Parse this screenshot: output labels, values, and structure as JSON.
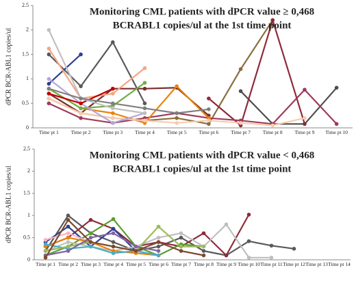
{
  "chart_data": [
    {
      "type": "line",
      "title": [
        "Monitoring CML patients with dPCR value ≥ 0,468",
        "BCRABL1 copies/ul at the 1st time point"
      ],
      "y_label": "dPCR BCR-ABL1 copies/ul",
      "categories": [
        "Time pt 1",
        "Time pt 2",
        "Time pt 3",
        "Time pt 4",
        "Time pt 5",
        "Time pt 6",
        "Time pt 7",
        "Time pt 8",
        "Time pt 9",
        "Time pt 10"
      ],
      "ylim": [
        0,
        2.5
      ],
      "yticks": [
        0,
        0.5,
        1,
        1.5,
        2,
        2.5
      ],
      "grid": false,
      "series": [
        {
          "color": "#595959",
          "values": [
            1.5,
            0.85,
            1.75,
            0.5,
            null,
            null,
            null,
            null,
            null,
            null
          ]
        },
        {
          "color": "#2e3f8f",
          "values": [
            0.9,
            1.5,
            null,
            null,
            null,
            null,
            null,
            null,
            null,
            null
          ]
        },
        {
          "color": "#4d4d4d",
          "values": [
            null,
            null,
            null,
            null,
            null,
            null,
            0.75,
            0.08,
            0.08,
            0.82
          ]
        },
        {
          "color": "#7b2d2d",
          "values": [
            0.7,
            0.3,
            0.8,
            0.8,
            0.82,
            0.25,
            null,
            null,
            null,
            null
          ]
        },
        {
          "color": "#8a6d3b",
          "values": [
            0.6,
            0.3,
            0.2,
            0.15,
            0.2,
            0.08,
            1.2,
            2.2,
            null,
            null
          ]
        },
        {
          "color": "#8e2a3a",
          "values": [
            null,
            null,
            null,
            null,
            null,
            0.6,
            0.05,
            2.2,
            0.08,
            null
          ]
        },
        {
          "color": "#9e3a5a",
          "values": [
            0.5,
            0.2,
            0.1,
            0.2,
            0.3,
            0.2,
            0.15,
            0.08,
            0.78,
            0.08
          ]
        },
        {
          "color": "#e8820c",
          "values": [
            0.8,
            0.4,
            0.3,
            0.1,
            0.85,
            0.2,
            null,
            null,
            null,
            null
          ]
        },
        {
          "color": "#f4a582",
          "values": [
            1.62,
            0.6,
            0.7,
            1.22,
            null,
            null,
            null,
            null,
            null,
            null
          ]
        },
        {
          "color": "#70ad47",
          "values": [
            0.8,
            0.4,
            0.45,
            0.92,
            null,
            null,
            null,
            null,
            null,
            null
          ]
        },
        {
          "color": "#f8cbad",
          "values": [
            0.6,
            0.3,
            0.2,
            0.15,
            0.1,
            0.15,
            0.1,
            0.05,
            0.2,
            null
          ]
        },
        {
          "color": "#b4a7d6",
          "values": [
            1.0,
            0.5,
            0.1,
            0.3,
            null,
            null,
            null,
            null,
            null,
            null
          ]
        },
        {
          "color": "#c00000",
          "values": [
            0.7,
            0.5,
            0.8,
            null,
            null,
            null,
            null,
            null,
            null,
            null
          ]
        },
        {
          "color": "#bfbfbf",
          "values": [
            2.0,
            0.6,
            0.4,
            0.3,
            null,
            null,
            null,
            null,
            null,
            null
          ]
        },
        {
          "color": "#7f7f7f",
          "values": [
            0.8,
            0.6,
            0.5,
            0.4,
            0.3,
            0.38,
            null,
            null,
            null,
            null
          ]
        }
      ]
    },
    {
      "type": "line",
      "title": [
        "Monitoring CML patients with dPCR value < 0,468",
        "BCRABL1 copies/ul at the 1st time point"
      ],
      "y_label": "dPCR BCR-ABL1 copies/ul",
      "categories": [
        "Time pt 1",
        "Time pt 2",
        "Time pt 3",
        "Time pt 4",
        "Time pt 5",
        "Time pt 6",
        "Time pt 7",
        "Time pt 8",
        "Time pt 9",
        "Time pt 10",
        "Time pt 11",
        "Time pt 12",
        "Time pt 13",
        "Time pt 14"
      ],
      "ylim": [
        0,
        2.5
      ],
      "yticks": [
        0,
        0.5,
        1,
        1.5,
        2,
        2.5
      ],
      "grid": false,
      "series": [
        {
          "color": "#595959",
          "values": [
            0.2,
            1.0,
            0.6,
            0.4,
            0.2,
            0.3,
            0.5,
            0.2,
            0.1,
            0.42,
            0.32,
            0.25,
            null,
            null
          ]
        },
        {
          "color": "#8e2a3a",
          "values": [
            0.3,
            0.5,
            0.9,
            0.7,
            0.3,
            0.4,
            0.3,
            0.6,
            0.1,
            1.02,
            null,
            null,
            null,
            null
          ]
        },
        {
          "color": "#5a9e2f",
          "values": [
            0.1,
            0.3,
            0.6,
            0.92,
            0.3,
            0.1,
            0.35,
            0.3,
            null,
            null,
            null,
            null,
            null,
            null
          ]
        },
        {
          "color": "#2e3f8f",
          "values": [
            0.4,
            0.75,
            0.3,
            0.7,
            0.2,
            null,
            null,
            null,
            null,
            null,
            null,
            null,
            null,
            null
          ]
        },
        {
          "color": "#bfbfbf",
          "values": [
            0.2,
            0.4,
            0.3,
            0.2,
            0.3,
            0.5,
            0.6,
            0.3,
            0.8,
            0.05,
            0.05,
            null,
            null,
            null
          ]
        },
        {
          "color": "#f4b6c2",
          "values": [
            0.45,
            0.6,
            0.4,
            0.3,
            0.2,
            0.1,
            null,
            null,
            null,
            null,
            null,
            null,
            null,
            null
          ]
        },
        {
          "color": "#e8820c",
          "values": [
            0.3,
            0.5,
            0.4,
            0.2,
            0.15,
            0.1,
            null,
            null,
            null,
            null,
            null,
            null,
            null,
            null
          ]
        },
        {
          "color": "#4bacc6",
          "values": [
            0.35,
            0.25,
            0.3,
            0.15,
            0.2,
            0.1,
            null,
            null,
            null,
            null,
            null,
            null,
            null,
            null
          ]
        },
        {
          "color": "#9bbb59",
          "values": [
            0.2,
            0.3,
            0.4,
            0.3,
            0.2,
            0.75,
            0.3,
            0.3,
            null,
            null,
            null,
            null,
            null,
            null
          ]
        },
        {
          "color": "#8064a2",
          "values": [
            0.1,
            0.2,
            0.5,
            0.6,
            0.3,
            0.2,
            null,
            null,
            null,
            null,
            null,
            null,
            null,
            null
          ]
        },
        {
          "color": "#7b4a2d",
          "values": [
            0.05,
            0.9,
            0.4,
            0.3,
            0.2,
            0.4,
            0.2,
            0.1,
            null,
            null,
            null,
            null,
            null,
            null
          ]
        }
      ]
    }
  ]
}
